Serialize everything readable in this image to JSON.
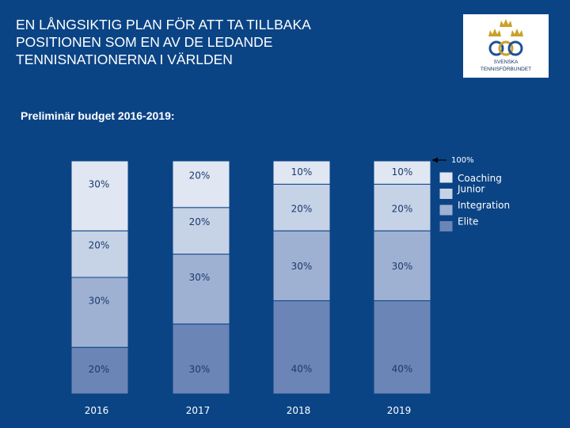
{
  "header": {
    "title_lines": [
      "EN LÅNGSIKTIG PLAN FÖR ATT TA TILLBAKA",
      "POSITIONEN SOM EN AV DE LEDANDE",
      "TENNISNATIONERNA I VÄRLDEN"
    ]
  },
  "logo": {
    "line1": "SVENSKA",
    "line2": "TENNISFÖRBUNDET"
  },
  "subtitle": "Preliminär budget 2016-2019:",
  "colors": {
    "background": "#0b4485",
    "Coaching": "#e0e7f2",
    "Junior": "#c6d2e6",
    "Integration": "#9fb1d2",
    "Elite": "#6b85b6",
    "bar_border": "#0b4485"
  },
  "chart_data": {
    "type": "bar",
    "stacked": true,
    "categories": [
      "2016",
      "2017",
      "2018",
      "2019"
    ],
    "series": [
      {
        "name": "Elite",
        "values": [
          20,
          30,
          40,
          40
        ]
      },
      {
        "name": "Integration",
        "values": [
          30,
          30,
          30,
          30
        ]
      },
      {
        "name": "Junior",
        "values": [
          20,
          20,
          20,
          20
        ]
      },
      {
        "name": "Coaching",
        "values": [
          30,
          20,
          10,
          10
        ]
      }
    ],
    "value_labels": [
      [
        "20%",
        "30%",
        "40%",
        "40%"
      ],
      [
        "30%",
        "30%",
        "30%",
        "30%"
      ],
      [
        "20%",
        "20%",
        "20%",
        "20%"
      ],
      [
        "30%",
        "20%",
        "10%",
        "10%"
      ]
    ],
    "annotation": "100%",
    "legend": [
      "Coaching",
      "Junior",
      "Integration",
      "Elite"
    ],
    "legend_position": "right",
    "title": "Preliminär budget 2016-2019:",
    "ylim": [
      0,
      100
    ],
    "grid": false
  }
}
